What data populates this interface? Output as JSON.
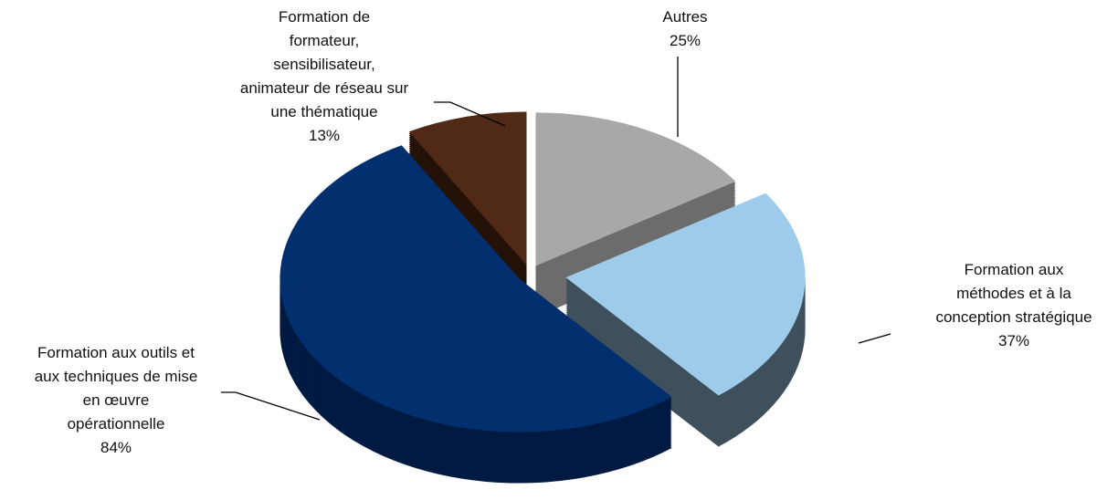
{
  "chart_data": {
    "type": "pie3d",
    "categories": [
      "Autres",
      "Formation aux\nméthodes et à la\nconception stratégique",
      "Formation aux outils et\naux techniques de mise\nen œuvre\nopérationnelle",
      "Formation de\nformateur,\nsensibilisateur,\nanimateur de réseau sur\nune thématique"
    ],
    "values": [
      25,
      37,
      84,
      13
    ],
    "value_labels": [
      "25%",
      "37%",
      "84%",
      "13%"
    ],
    "colors": [
      "#a8a8a8",
      "#9fcbea",
      "#02306f",
      "#512a17"
    ],
    "side_colors": [
      "#6c6c6c",
      "#3f505d",
      "#001a42",
      "#241209"
    ]
  }
}
